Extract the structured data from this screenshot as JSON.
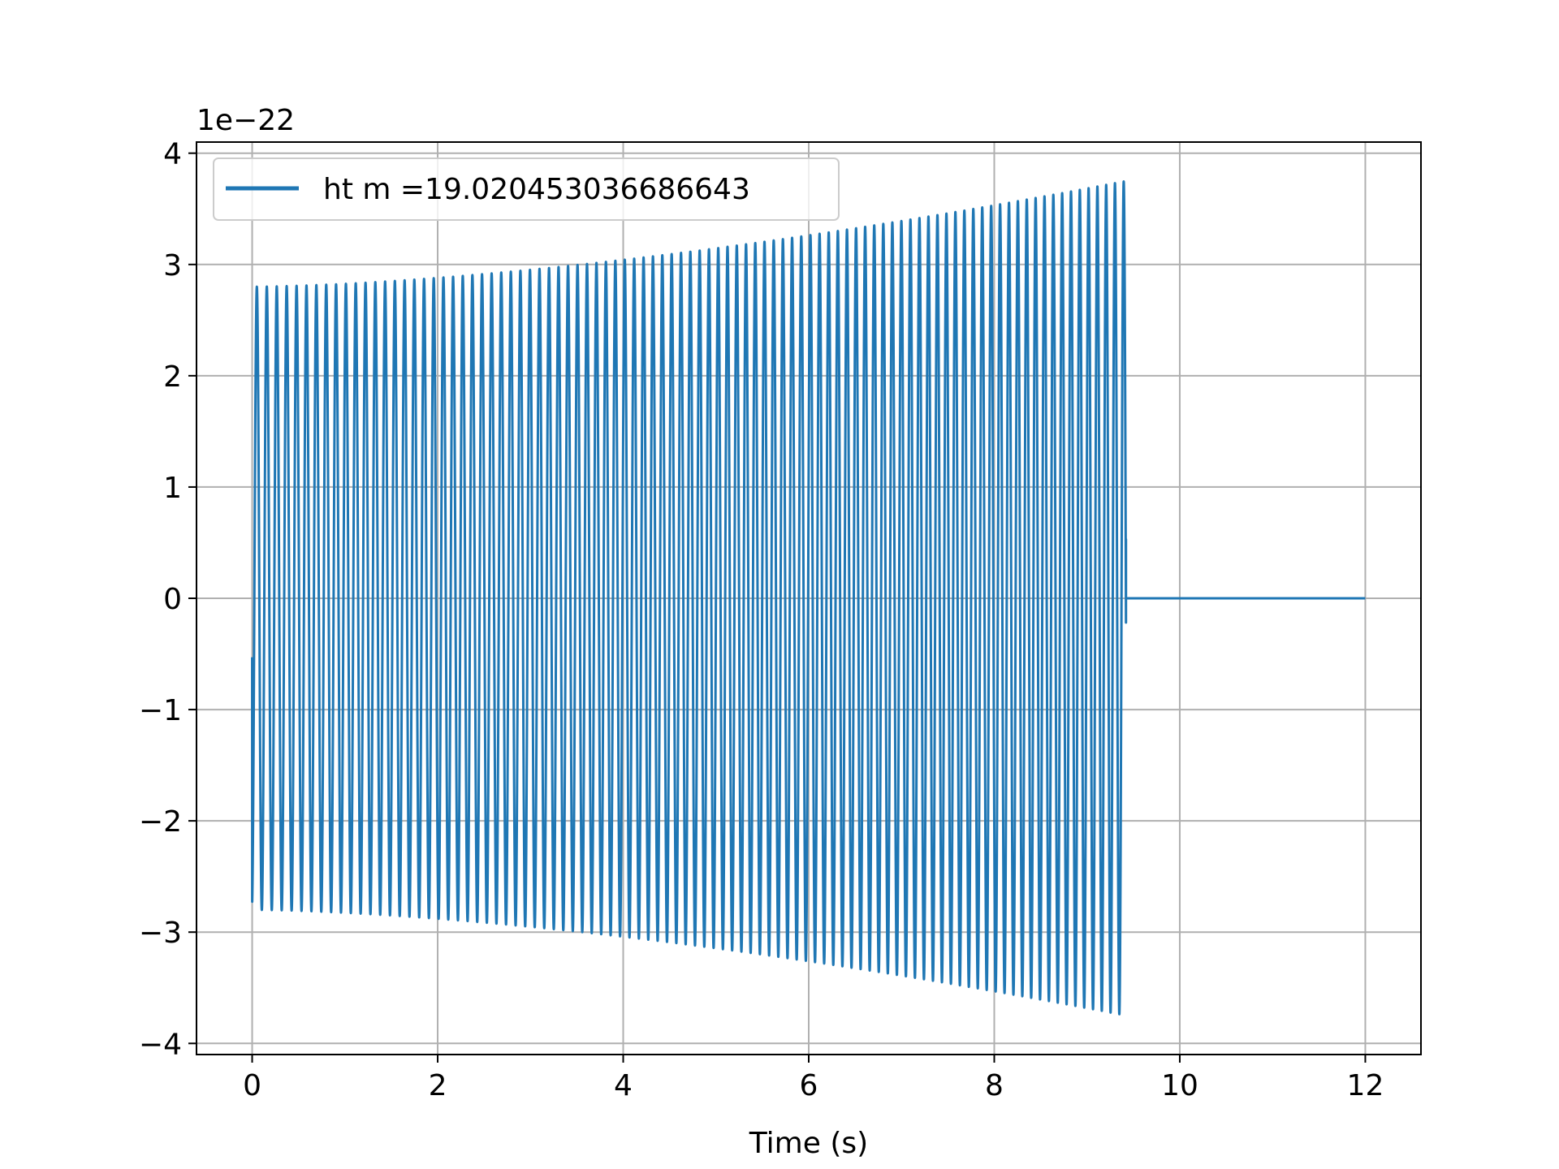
{
  "chart_data": {
    "type": "line",
    "title": "",
    "xlabel": "Time (s)",
    "ylabel": "",
    "y_offset_label": "1e−22",
    "y_scale_factor": 1e-22,
    "xlim": [
      -0.6,
      12.6
    ],
    "ylim": [
      -4.1,
      4.1
    ],
    "xticks": [
      0,
      2,
      4,
      6,
      8,
      10,
      12
    ],
    "xtick_labels": [
      "0",
      "2",
      "4",
      "6",
      "8",
      "10",
      "12"
    ],
    "yticks": [
      -4,
      -3,
      -2,
      -1,
      0,
      1,
      2,
      3,
      4
    ],
    "ytick_labels": [
      "−4",
      "−3",
      "−2",
      "−1",
      "0",
      "1",
      "2",
      "3",
      "4"
    ],
    "grid": true,
    "legend_position": "upper-left",
    "series": [
      {
        "name": "ht m =19.020453036686643",
        "color": "#1f77b4",
        "oscillation_start_time": 0.0,
        "oscillation_end_time": 9.42,
        "signal_end_time": 12.0,
        "initial_amplitude": 2.8,
        "final_amplitude": 3.75,
        "initial_frequency": 9.3,
        "final_frequency": 10.6,
        "start_value": -0.53,
        "end_value": 0.53
      }
    ]
  }
}
